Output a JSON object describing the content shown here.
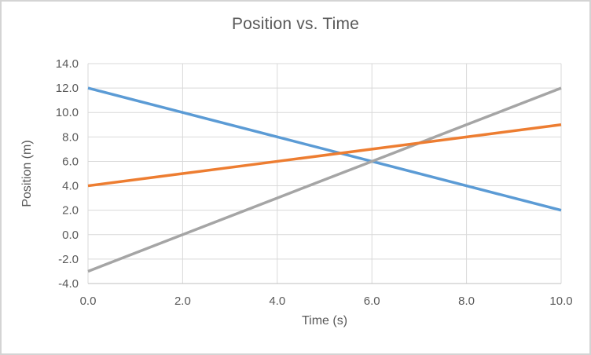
{
  "frame": {
    "border_color": "#D4D4D4",
    "background": "#FFFFFF"
  },
  "chart_data": {
    "type": "line",
    "title": "Position vs. Time",
    "xlabel": "Time (s)",
    "ylabel": "Position (m)",
    "x": [
      0,
      2,
      4,
      6,
      8,
      10
    ],
    "series": [
      {
        "id": "blue",
        "color": "#5B9BD5",
        "values": [
          12,
          10,
          8,
          6,
          4,
          2
        ]
      },
      {
        "id": "gray",
        "color": "#A5A5A5",
        "values": [
          -3,
          0,
          3,
          6,
          9,
          12
        ]
      },
      {
        "id": "orange",
        "color": "#ED7D31",
        "values": [
          4,
          5,
          6,
          7,
          8,
          9
        ]
      }
    ],
    "xlim": [
      0,
      10
    ],
    "ylim": [
      -4,
      14
    ],
    "xticks": [
      0,
      2,
      4,
      6,
      8,
      10
    ],
    "yticks": [
      -4,
      -2,
      0,
      2,
      4,
      6,
      8,
      10,
      12,
      14
    ],
    "tick_decimals": 1,
    "grid": true,
    "legend": "none",
    "line_width": 3.5,
    "colors": {
      "gridline": "#D9D9D9",
      "axis_line": "#BFBFBF",
      "text": "#595959"
    }
  }
}
